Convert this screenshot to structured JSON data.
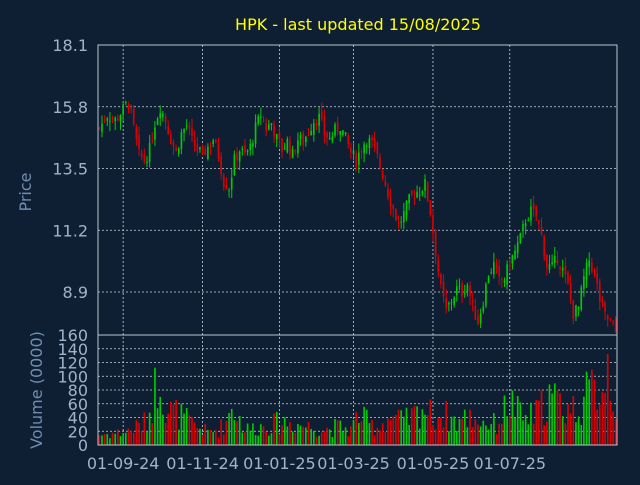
{
  "chart_data": [
    {
      "type": "candlestick",
      "title": "HPK - last updated 15/08/2025",
      "xlabel": "",
      "ylabel": "Price",
      "ylim": [
        7.3,
        18.1
      ],
      "yticks": [
        "18.1",
        "15.8",
        "13.5",
        "11.2",
        "8.9"
      ],
      "ytick_values": [
        18.1,
        15.8,
        13.5,
        11.2,
        8.9
      ],
      "grid": true,
      "up_color": "#00cc00",
      "down_color": "#dd0000",
      "close_anchors": [
        [
          0,
          15.0
        ],
        [
          3,
          15.5
        ],
        [
          6,
          15.3
        ],
        [
          9,
          15.7
        ],
        [
          11,
          16.0
        ],
        [
          13,
          15.0
        ],
        [
          15,
          14.0
        ],
        [
          17,
          13.8
        ],
        [
          19,
          14.2
        ],
        [
          21,
          15.2
        ],
        [
          23,
          15.8
        ],
        [
          25,
          15.3
        ],
        [
          27,
          14.6
        ],
        [
          29,
          14.1
        ],
        [
          31,
          14.8
        ],
        [
          33,
          15.1
        ],
        [
          35,
          14.5
        ],
        [
          37,
          14.2
        ],
        [
          39,
          14.0
        ],
        [
          41,
          14.3
        ],
        [
          43,
          14.6
        ],
        [
          45,
          14.0
        ],
        [
          47,
          13.0
        ],
        [
          49,
          12.8
        ],
        [
          51,
          13.8
        ],
        [
          53,
          14.2
        ],
        [
          55,
          14.0
        ],
        [
          57,
          14.3
        ],
        [
          59,
          15.0
        ],
        [
          61,
          15.5
        ],
        [
          63,
          15.0
        ],
        [
          65,
          15.2
        ],
        [
          67,
          14.6
        ],
        [
          69,
          14.2
        ],
        [
          71,
          14.5
        ],
        [
          73,
          14.0
        ],
        [
          75,
          14.6
        ],
        [
          77,
          14.5
        ],
        [
          79,
          14.9
        ],
        [
          81,
          15.3
        ],
        [
          83,
          15.4
        ],
        [
          85,
          14.8
        ],
        [
          87,
          14.6
        ],
        [
          89,
          14.9
        ],
        [
          91,
          15.1
        ],
        [
          93,
          14.6
        ],
        [
          95,
          14.1
        ],
        [
          97,
          13.8
        ],
        [
          99,
          14.3
        ],
        [
          101,
          14.6
        ],
        [
          103,
          14.4
        ],
        [
          105,
          13.9
        ],
        [
          107,
          13.3
        ],
        [
          109,
          12.6
        ],
        [
          111,
          12.0
        ],
        [
          113,
          11.4
        ],
        [
          115,
          11.8
        ],
        [
          117,
          12.3
        ],
        [
          119,
          12.6
        ],
        [
          121,
          12.7
        ],
        [
          123,
          12.9
        ],
        [
          125,
          11.9
        ],
        [
          127,
          10.4
        ],
        [
          129,
          9.0
        ],
        [
          131,
          8.2
        ],
        [
          133,
          8.6
        ],
        [
          135,
          9.0
        ],
        [
          137,
          8.9
        ],
        [
          139,
          9.2
        ],
        [
          141,
          8.3
        ],
        [
          143,
          7.8
        ],
        [
          145,
          8.6
        ],
        [
          147,
          9.6
        ],
        [
          149,
          9.9
        ],
        [
          151,
          9.3
        ],
        [
          153,
          9.4
        ],
        [
          155,
          10.0
        ],
        [
          157,
          10.4
        ],
        [
          159,
          10.9
        ],
        [
          161,
          11.6
        ],
        [
          163,
          11.9
        ],
        [
          165,
          11.7
        ],
        [
          167,
          11.0
        ],
        [
          169,
          9.9
        ],
        [
          171,
          9.8
        ],
        [
          173,
          10.2
        ],
        [
          175,
          9.7
        ],
        [
          177,
          9.1
        ],
        [
          179,
          8.1
        ],
        [
          181,
          8.3
        ],
        [
          183,
          9.4
        ],
        [
          185,
          10.1
        ],
        [
          187,
          9.6
        ],
        [
          189,
          8.6
        ],
        [
          191,
          8.0
        ],
        [
          193,
          7.8
        ],
        [
          195,
          7.4
        ]
      ]
    },
    {
      "type": "bar",
      "ylabel": "Volume (0000)",
      "ylim": [
        0,
        160
      ],
      "yticks": [
        "160",
        "140",
        "120",
        "100",
        "80",
        "60",
        "40",
        "20",
        "0"
      ],
      "ytick_values": [
        160,
        140,
        120,
        100,
        80,
        60,
        40,
        20,
        0
      ],
      "xticks": [
        "01-09-24",
        "01-11-24",
        "01-01-25",
        "01-03-25",
        "01-05-25",
        "01-07-25"
      ],
      "xtick_index": [
        9,
        39,
        68,
        96,
        126,
        155
      ],
      "grid": true,
      "volume_anchors": [
        [
          0,
          20
        ],
        [
          10,
          25
        ],
        [
          18,
          45
        ],
        [
          19,
          65
        ],
        [
          23,
          150
        ],
        [
          25,
          70
        ],
        [
          30,
          60
        ],
        [
          35,
          40
        ],
        [
          41,
          25
        ],
        [
          45,
          30
        ],
        [
          48,
          45
        ],
        [
          50,
          80
        ],
        [
          55,
          30
        ],
        [
          60,
          35
        ],
        [
          65,
          40
        ],
        [
          70,
          45
        ],
        [
          75,
          40
        ],
        [
          80,
          35
        ],
        [
          85,
          30
        ],
        [
          90,
          35
        ],
        [
          95,
          30
        ],
        [
          98,
          60
        ],
        [
          102,
          40
        ],
        [
          105,
          35
        ],
        [
          110,
          55
        ],
        [
          115,
          45
        ],
        [
          120,
          60
        ],
        [
          122,
          75
        ],
        [
          126,
          55
        ],
        [
          130,
          60
        ],
        [
          135,
          45
        ],
        [
          140,
          55
        ],
        [
          145,
          45
        ],
        [
          150,
          40
        ],
        [
          155,
          85
        ],
        [
          160,
          50
        ],
        [
          165,
          60
        ],
        [
          170,
          95
        ],
        [
          175,
          75
        ],
        [
          180,
          70
        ],
        [
          185,
          100
        ],
        [
          190,
          120
        ],
        [
          192,
          160
        ],
        [
          193,
          130
        ],
        [
          195,
          80
        ]
      ]
    }
  ]
}
